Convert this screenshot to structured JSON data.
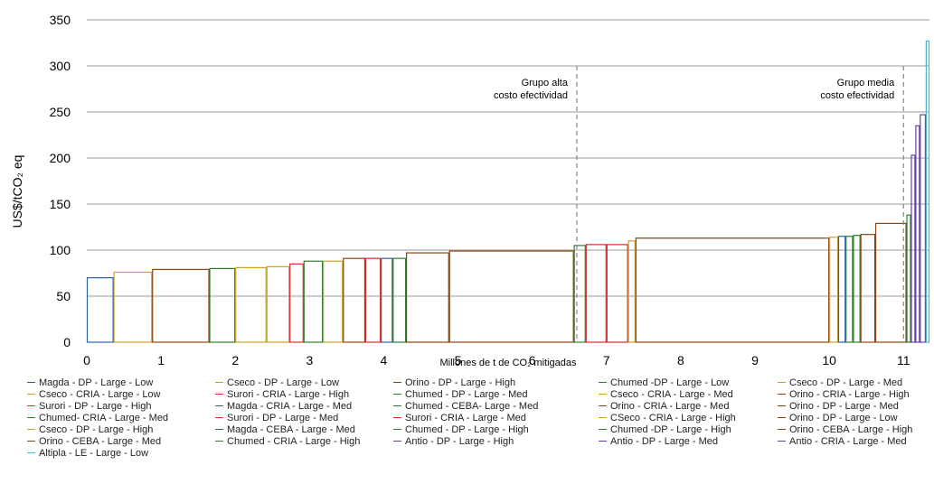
{
  "chart_data": {
    "type": "bar",
    "ylabel": "US$/tCO₂ eq",
    "xlabel": "Millones de t de CO₂ mitigadas",
    "xlim": [
      0,
      11.35
    ],
    "ylim": [
      0,
      350
    ],
    "x_ticks": [
      0,
      1,
      2,
      3,
      4,
      5,
      6,
      7,
      8,
      9,
      10,
      11
    ],
    "y_ticks": [
      0,
      50,
      100,
      150,
      200,
      250,
      300,
      350
    ],
    "grid": "horizontal",
    "legend_position": "bottom",
    "annotations": [
      {
        "x": 6.6,
        "y_top": 300,
        "line1": "Grupo alta",
        "line2": "costo efectividad"
      },
      {
        "x": 11.0,
        "y_top": 300,
        "line1": "Grupo media",
        "line2": "costo efectividad"
      }
    ],
    "series": [
      {
        "name": "Magda - DP - Large - Low",
        "x_start": 0.0,
        "x_end": 0.36,
        "value": 70,
        "color": "#2e5fa3"
      },
      {
        "name": "Cseco - DP - Large - Low",
        "x_start": 0.36,
        "x_end": 0.88,
        "value": 76,
        "color": "#c9a227"
      },
      {
        "name": "Orino - DP - Large - High",
        "x_start": 0.88,
        "x_end": 1.65,
        "value": 79,
        "color": "#8b4513"
      },
      {
        "name": "Chumed -DP - Large - Low",
        "x_start": 1.65,
        "x_end": 2.0,
        "value": 80,
        "color": "#2e7d32"
      },
      {
        "name": "Cseco - DP - Large - Med",
        "x_start": 2.0,
        "x_end": 2.42,
        "value": 81,
        "color": "#c9a227"
      },
      {
        "name": "Cseco - CRIA - Large - Low",
        "x_start": 2.42,
        "x_end": 2.73,
        "value": 82,
        "color": "#c9a227"
      },
      {
        "name": "Surori - CRIA - Large - High",
        "x_start": 2.73,
        "x_end": 2.92,
        "value": 85,
        "color": "#d32f2f"
      },
      {
        "name": "Chumed - DP - Large - Med",
        "x_start": 2.92,
        "x_end": 3.18,
        "value": 88,
        "color": "#2e7d32"
      },
      {
        "name": "Cseco - CRIA - Large - Med",
        "x_start": 3.18,
        "x_end": 3.45,
        "value": 88,
        "color": "#c9a227"
      },
      {
        "name": "Orino - CRIA - Large - High",
        "x_start": 3.45,
        "x_end": 3.75,
        "value": 91,
        "color": "#8b4513"
      },
      {
        "name": "Surori - DP - Large - High",
        "x_start": 3.75,
        "x_end": 3.96,
        "value": 91,
        "color": "#d32f2f"
      },
      {
        "name": "Magda - CRIA - Large - Med",
        "x_start": 3.96,
        "x_end": 4.12,
        "value": 91,
        "color": "#2e5fa3"
      },
      {
        "name": "Chumed - CEBA- Large - Med",
        "x_start": 4.12,
        "x_end": 4.3,
        "value": 91,
        "color": "#2e7d32"
      },
      {
        "name": "Orino - CRIA - Large - Med",
        "x_start": 4.3,
        "x_end": 4.88,
        "value": 97,
        "color": "#8b4513"
      },
      {
        "name": "Orino - DP - Large - Med",
        "x_start": 4.88,
        "x_end": 6.56,
        "value": 99,
        "color": "#8b4513"
      },
      {
        "name": "Chumed- CRIA - Large - Med",
        "x_start": 6.56,
        "x_end": 6.72,
        "value": 105,
        "color": "#2e7d32"
      },
      {
        "name": "Surori - DP - Large - Med",
        "x_start": 6.72,
        "x_end": 7.0,
        "value": 106,
        "color": "#d32f2f"
      },
      {
        "name": "Surori - CRIA - Large - Med",
        "x_start": 7.0,
        "x_end": 7.29,
        "value": 106,
        "color": "#d32f2f"
      },
      {
        "name": "CSeco - CRIA - Large - High",
        "x_start": 7.29,
        "x_end": 7.39,
        "value": 110,
        "color": "#c9a227"
      },
      {
        "name": "Orino - DP - Large - Low",
        "x_start": 7.39,
        "x_end": 10.0,
        "value": 113,
        "color": "#8b4513"
      },
      {
        "name": "Cseco - DP - Large - High",
        "x_start": 10.0,
        "x_end": 10.12,
        "value": 114,
        "color": "#c9a227"
      },
      {
        "name": "Magda - CEBA - Large - Med",
        "x_start": 10.12,
        "x_end": 10.22,
        "value": 115,
        "color": "#2e5fa3"
      },
      {
        "name": "Chumed - DP - Large - High",
        "x_start": 10.22,
        "x_end": 10.32,
        "value": 115,
        "color": "#2e7d32"
      },
      {
        "name": "Chumed -DP - Large - High",
        "x_start": 10.32,
        "x_end": 10.42,
        "value": 116,
        "color": "#2e7d32"
      },
      {
        "name": "Orino - CEBA - Large - High",
        "x_start": 10.42,
        "x_end": 10.62,
        "value": 117,
        "color": "#8b4513"
      },
      {
        "name": "Orino - CEBA - Large - Med",
        "x_start": 10.62,
        "x_end": 11.04,
        "value": 129,
        "color": "#8b4513"
      },
      {
        "name": "Chumed - CRIA - Large - High",
        "x_start": 11.04,
        "x_end": 11.1,
        "value": 138,
        "color": "#2e7d32"
      },
      {
        "name": "Antio - DP - Large - High",
        "x_start": 11.1,
        "x_end": 11.16,
        "value": 203,
        "color": "#6a3fa0"
      },
      {
        "name": "Antio - DP - Large - Med",
        "x_start": 11.16,
        "x_end": 11.22,
        "value": 235,
        "color": "#6a3fa0"
      },
      {
        "name": "Antio - CRIA - Large - Med",
        "x_start": 11.22,
        "x_end": 11.3,
        "value": 247,
        "color": "#6a3fa0"
      },
      {
        "name": "Altipla - LE - Large - Low",
        "x_start": 11.3,
        "x_end": 11.35,
        "value": 327,
        "color": "#3fb8d4"
      }
    ]
  },
  "legend": {
    "items": [
      {
        "label": "Magda - DP - Large - Low",
        "color": "#2e5fa3"
      },
      {
        "label": "Cseco - DP - Large - Low",
        "color": "#c9a227"
      },
      {
        "label": "Orino - DP - Large - High",
        "color": "#8b4513"
      },
      {
        "label": "Chumed -DP - Large - Low",
        "color": "#2e7d32"
      },
      {
        "label": "Cseco - DP - Large - Med",
        "color": "#c9a227"
      },
      {
        "label": "Cseco - CRIA - Large - Low",
        "color": "#c9a227"
      },
      {
        "label": "Surori - CRIA - Large - High",
        "color": "#d32f2f"
      },
      {
        "label": "Chumed - DP - Large - Med",
        "color": "#2e7d32"
      },
      {
        "label": "Cseco - CRIA - Large - Med",
        "color": "#c9a227"
      },
      {
        "label": "Orino - CRIA - Large - High",
        "color": "#8b4513"
      },
      {
        "label": "Surori - DP - Large - High",
        "color": "#d32f2f"
      },
      {
        "label": "Magda - CRIA - Large - Med",
        "color": "#2e5fa3"
      },
      {
        "label": "Chumed - CEBA- Large - Med",
        "color": "#2e7d32"
      },
      {
        "label": "Orino - CRIA - Large - Med",
        "color": "#8b4513"
      },
      {
        "label": "Orino - DP - Large - Med",
        "color": "#8b4513"
      },
      {
        "label": "Chumed- CRIA - Large - Med",
        "color": "#2e7d32"
      },
      {
        "label": "Surori - DP - Large - Med",
        "color": "#d32f2f"
      },
      {
        "label": "Surori - CRIA - Large - Med",
        "color": "#d32f2f"
      },
      {
        "label": "CSeco - CRIA - Large - High",
        "color": "#c9a227"
      },
      {
        "label": "Orino - DP - Large - Low",
        "color": "#8b4513"
      },
      {
        "label": "Cseco - DP - Large - High",
        "color": "#c9a227"
      },
      {
        "label": "Magda - CEBA - Large - Med",
        "color": "#2e5fa3"
      },
      {
        "label": "Chumed - DP - Large - High",
        "color": "#2e7d32"
      },
      {
        "label": "Chumed -DP - Large - High",
        "color": "#2e7d32"
      },
      {
        "label": "Orino - CEBA - Large - High",
        "color": "#8b4513"
      },
      {
        "label": "Orino - CEBA - Large - Med",
        "color": "#8b4513"
      },
      {
        "label": "Chumed - CRIA - Large - High",
        "color": "#2e7d32"
      },
      {
        "label": "Antio - DP - Large - High",
        "color": "#6a3fa0"
      },
      {
        "label": "Antio - DP - Large - Med",
        "color": "#6a3fa0"
      },
      {
        "label": "Antio - CRIA - Large - Med",
        "color": "#6a3fa0"
      },
      {
        "label": "Altipla - LE - Large - Low",
        "color": "#3fb8d4"
      }
    ]
  }
}
